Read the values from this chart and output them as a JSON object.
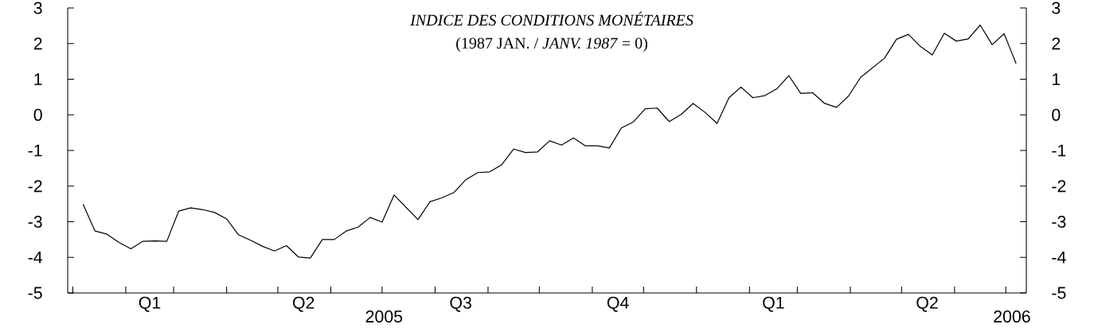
{
  "chart_data": {
    "type": "line",
    "title": "INDICE DES CONDITIONS MONÉTAIRES",
    "subtitle": "(1987 JAN. / *JANV. 1987* = 0)",
    "annotations": [
      "2005",
      "2006"
    ],
    "x": [
      "2005-01-07",
      "2005-01-14",
      "2005-01-21",
      "2005-01-28",
      "2005-02-04",
      "2005-02-11",
      "2005-02-18",
      "2005-02-25",
      "2005-03-04",
      "2005-03-11",
      "2005-03-18",
      "2005-03-25",
      "2005-04-01",
      "2005-04-08",
      "2005-04-15",
      "2005-04-22",
      "2005-04-29",
      "2005-05-06",
      "2005-05-13",
      "2005-05-20",
      "2005-05-27",
      "2005-06-03",
      "2005-06-10",
      "2005-06-17",
      "2005-06-24",
      "2005-07-01",
      "2005-07-08",
      "2005-07-22",
      "2005-07-29",
      "2005-08-05",
      "2005-08-12",
      "2005-08-19",
      "2005-08-26",
      "2005-09-02",
      "2005-09-09",
      "2005-09-16",
      "2005-09-23",
      "2005-09-30",
      "2005-10-07",
      "2005-10-14",
      "2005-10-21",
      "2005-10-28",
      "2005-11-04",
      "2005-11-11",
      "2005-11-18",
      "2005-11-25",
      "2005-12-02",
      "2005-12-09",
      "2005-12-16",
      "2005-12-23",
      "2005-12-30",
      "2006-01-06",
      "2006-01-13",
      "2006-01-20",
      "2006-01-27",
      "2006-02-03",
      "2006-02-10",
      "2006-02-17",
      "2006-02-24",
      "2006-03-03",
      "2006-03-10",
      "2006-03-17",
      "2006-03-24",
      "2006-03-31",
      "2006-04-07",
      "2006-04-14",
      "2006-04-21",
      "2006-04-28",
      "2006-05-05",
      "2006-05-12",
      "2006-05-19",
      "2006-05-26",
      "2006-06-02",
      "2006-06-09",
      "2006-06-16",
      "2006-06-23",
      "2006-06-30",
      "2006-07-07"
    ],
    "series": [
      {
        "color": "#000000",
        "values": [
          -2.51,
          -3.26,
          -3.35,
          -3.58,
          -3.76,
          -3.55,
          -3.54,
          -3.55,
          -2.7,
          -2.61,
          -2.66,
          -2.74,
          -2.92,
          -3.37,
          -3.52,
          -3.69,
          -3.82,
          -3.67,
          -3.99,
          -4.02,
          -3.5,
          -3.5,
          -3.26,
          -3.15,
          -2.88,
          -3.01,
          -2.25,
          -2.94,
          -2.44,
          -2.33,
          -2.18,
          -1.82,
          -1.62,
          -1.6,
          -1.4,
          -0.96,
          -1.06,
          -1.04,
          -0.73,
          -0.85,
          -0.65,
          -0.87,
          -0.87,
          -0.93,
          -0.37,
          -0.2,
          0.17,
          0.19,
          -0.19,
          0.01,
          0.32,
          0.07,
          -0.24,
          0.48,
          0.78,
          0.48,
          0.54,
          0.73,
          1.1,
          0.6,
          0.62,
          0.32,
          0.21,
          0.53,
          1.05,
          1.32,
          1.59,
          2.12,
          2.26,
          1.92,
          1.68,
          2.29,
          2.07,
          2.13,
          2.52,
          1.97,
          2.28,
          1.44
        ]
      }
    ],
    "xlim": [
      "2004-12-29",
      "2006-07-13"
    ],
    "xticks": [
      {
        "value": "2005-01-01",
        "label": null
      },
      {
        "value": "2005-02-01",
        "label": null
      },
      {
        "value": "2005-02-15",
        "label": "Q1"
      },
      {
        "value": "2005-03-01",
        "label": null
      },
      {
        "value": "2005-04-01",
        "label": null
      },
      {
        "value": "2005-05-01",
        "label": null
      },
      {
        "value": "2005-05-16",
        "label": "Q2"
      },
      {
        "value": "2005-06-01",
        "label": null
      },
      {
        "value": "2005-07-01",
        "label": null
      },
      {
        "value": "2005-08-01",
        "label": null
      },
      {
        "value": "2005-08-16",
        "label": "Q3"
      },
      {
        "value": "2005-09-01",
        "label": null
      },
      {
        "value": "2005-10-01",
        "label": null
      },
      {
        "value": "2005-11-01",
        "label": null
      },
      {
        "value": "2005-11-16",
        "label": "Q4"
      },
      {
        "value": "2005-12-01",
        "label": null
      },
      {
        "value": "2006-01-01",
        "label": null
      },
      {
        "value": "2006-02-01",
        "label": null
      },
      {
        "value": "2006-02-15",
        "label": "Q1"
      },
      {
        "value": "2006-03-01",
        "label": null
      },
      {
        "value": "2006-04-01",
        "label": null
      },
      {
        "value": "2006-05-01",
        "label": null
      },
      {
        "value": "2006-05-16",
        "label": "Q2"
      },
      {
        "value": "2006-06-01",
        "label": null
      },
      {
        "value": "2006-07-01",
        "label": null
      }
    ],
    "ylim": [
      -5,
      3
    ],
    "yticks": [
      -5,
      -4,
      -3,
      -2,
      -1,
      0,
      1,
      2,
      3
    ],
    "y2lim": [
      -5,
      3
    ],
    "y2ticks": [
      -5,
      -4,
      -3,
      -2,
      -1,
      0,
      1,
      2,
      3
    ],
    "grid": false,
    "marker": "none",
    "line_style": "solid"
  }
}
